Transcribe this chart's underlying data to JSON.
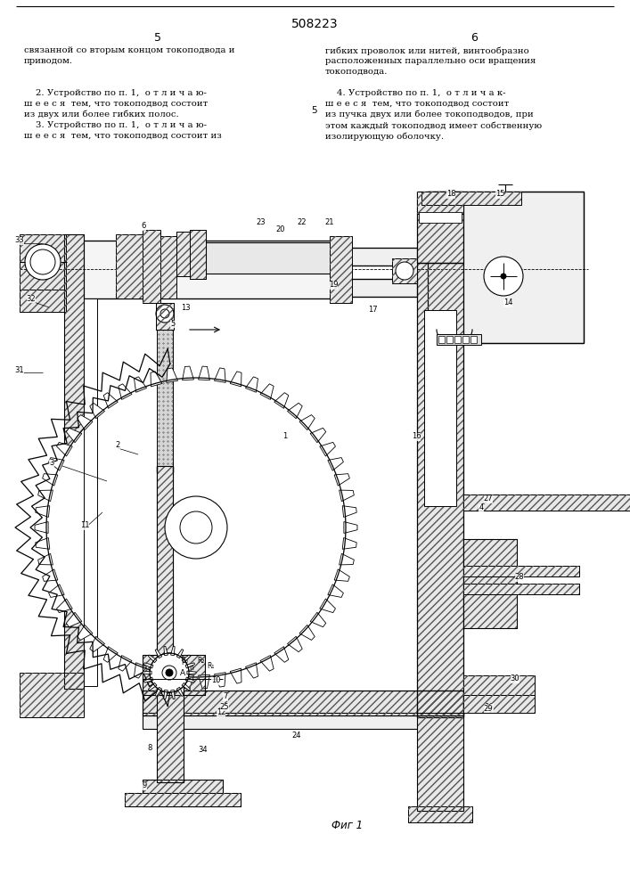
{
  "patent_number": "508223",
  "page_left": "5",
  "page_right": "6",
  "col_mid": "5",
  "text_left_top": "связанной со вторым концом токоподвода и\nприводом.",
  "text_left_body": "    2. Устройство по п. 1,  о т л и ч а ю-\nш е е с я  тем, что токоподвод состоит\nиз двух или более гибких полос.\n    3. Устройство по п. 1,  о т л и ч а ю-\nш е е с я  тем, что токоподвод состоит из",
  "text_right_top": "гибких проволок или нитей, винтообразно\nрасположенных параллельно оси вращения\nтокоподвода.",
  "text_right_body": "    4. Устройство по п. 1,  о т л и ч а к-\nш е е с я  тем, что токоподвод состоит\nиз пучка двух или более токоподводов, при\nэтом каждый токоподвод имеет собственную\nизолирующую оболочку.",
  "fig_caption": "Фиг 1",
  "bg_color": "#ffffff",
  "hatch_color": "#444444",
  "line_color": "#000000"
}
